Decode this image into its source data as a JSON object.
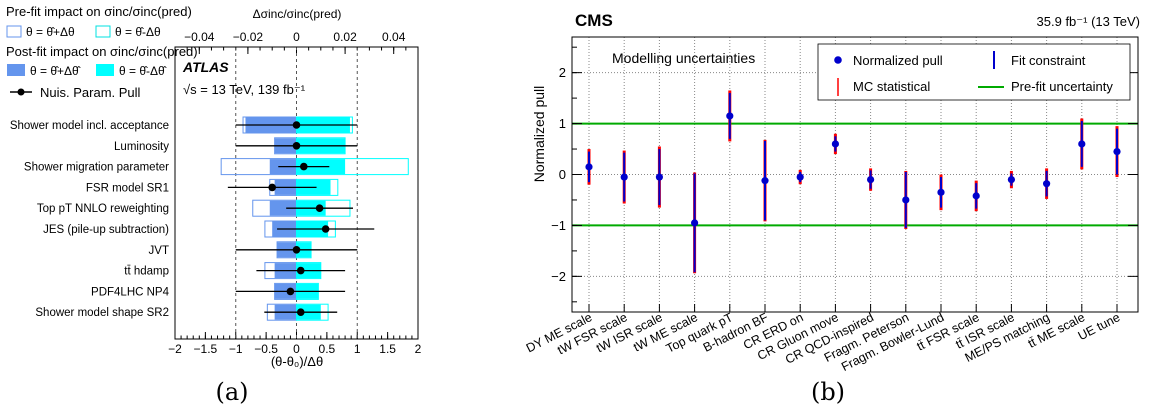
{
  "panel_a": {
    "label": "(a)",
    "experiment": "ATLAS",
    "energy_lumi": "√s = 13 TeV, 139 fb⁻¹",
    "legend": {
      "prefit_title": "Pre-fit impact on σinc/σinc(pred)",
      "prefit_plus": "θ = θ̂+Δθ",
      "prefit_minus": "θ = θ̂-Δθ",
      "postfit_title": "Post-fit impact on σinc/σinc(pred)",
      "postfit_plus": "θ = θ̂+Δθ̂",
      "postfit_minus": "θ = θ̂-Δθ̂",
      "pull": "Nuis. Param. Pull"
    },
    "colors": {
      "postfit_plus": "#6495ed",
      "postfit_minus": "#00ffff",
      "prefit_plus": "#6495ed",
      "prefit_minus": "#00ffff"
    }
  },
  "panel_b": {
    "label": "(b)",
    "experiment": "CMS",
    "lumi": "35.9 fb⁻¹ (13 TeV)",
    "annotation": "Modelling uncertainties",
    "legend": {
      "pull": "Normalized pull",
      "constraint": "Fit constraint",
      "mcstat": "MC statistical",
      "prefit": "Pre-fit uncertainty"
    },
    "colors": {
      "pull": "#0000cc",
      "mcstat": "#ff0000",
      "prefit": "#00aa00"
    }
  },
  "chart_data": [
    {
      "type": "bar",
      "xlabel": "(θ-θ₀)/Δθ",
      "x2label": "Δσinc/σinc(pred)",
      "xlim": [
        -2,
        2
      ],
      "xticks": [
        "-2",
        "-1.5",
        "-1",
        "-0.5",
        "0",
        "0.5",
        "1",
        "1.5",
        "2"
      ],
      "x2lim": [
        -0.05,
        0.05
      ],
      "x2ticks": [
        "-0.04",
        "-0.02",
        "0",
        "0.02",
        "0.04"
      ],
      "categories": [
        "Shower model incl. acceptance",
        "Luminosity",
        "Shower migration parameter",
        "FSR model SR1",
        "Top pT NNLO reweighting",
        "JES (pile-up subtraction)",
        "JVT",
        "tt̄ hdamp",
        "PDF4LHC NP4",
        "Shower model shape SR2"
      ],
      "pull": [
        0.0,
        0.0,
        0.12,
        -0.4,
        0.38,
        0.48,
        0.0,
        0.07,
        -0.1,
        0.07
      ],
      "pull_err": [
        1.0,
        1.0,
        0.42,
        0.73,
        0.55,
        0.8,
        1.0,
        0.73,
        0.9,
        0.6
      ],
      "prefit_plus": [
        -0.022,
        -0.009,
        -0.031,
        -0.011,
        -0.018,
        -0.013,
        -0.008,
        -0.013,
        -0.009,
        -0.012
      ],
      "prefit_minus": [
        0.023,
        0.02,
        0.046,
        0.017,
        0.022,
        0.016,
        0.006,
        0.01,
        0.009,
        0.013
      ],
      "postfit_plus": [
        -0.021,
        -0.009,
        -0.011,
        -0.009,
        -0.011,
        -0.01,
        -0.008,
        -0.009,
        -0.009,
        -0.009
      ],
      "postfit_minus": [
        0.022,
        0.02,
        0.02,
        0.014,
        0.012,
        0.013,
        0.006,
        0.01,
        0.009,
        0.01
      ]
    },
    {
      "type": "scatter",
      "ylabel": "Normalized pull",
      "ylim": [
        -2.7,
        2.7
      ],
      "yticks": [
        "-2",
        "-1",
        "0",
        "1",
        "2"
      ],
      "prefit_band": [
        -1,
        1
      ],
      "categories": [
        "DY ME scale",
        "tW FSR scale",
        "tW ISR scale",
        "tW ME scale",
        "Top quark pT",
        "B-hadron BF",
        "CR ERD on",
        "CR Gluon move",
        "CR QCD-inspired",
        "Fragm. Peterson",
        "Fragm. Bowler-Lund",
        "tt̄ FSR scale",
        "tt̄ ISR scale",
        "ME/PS matching",
        "tt̄ ME scale",
        "UE tune"
      ],
      "pull": [
        0.15,
        -0.05,
        -0.05,
        -0.95,
        1.15,
        -0.12,
        -0.05,
        0.6,
        -0.1,
        -0.5,
        -0.35,
        -0.42,
        -0.1,
        -0.18,
        0.6,
        0.45
      ],
      "constraint": [
        0.3,
        0.48,
        0.55,
        0.97,
        0.45,
        0.78,
        0.1,
        0.15,
        0.18,
        0.55,
        0.3,
        0.25,
        0.12,
        0.25,
        0.45,
        0.45
      ],
      "mcstat": [
        0.35,
        0.52,
        0.6,
        0.99,
        0.5,
        0.8,
        0.14,
        0.2,
        0.22,
        0.57,
        0.35,
        0.3,
        0.17,
        0.3,
        0.5,
        0.5
      ]
    }
  ]
}
